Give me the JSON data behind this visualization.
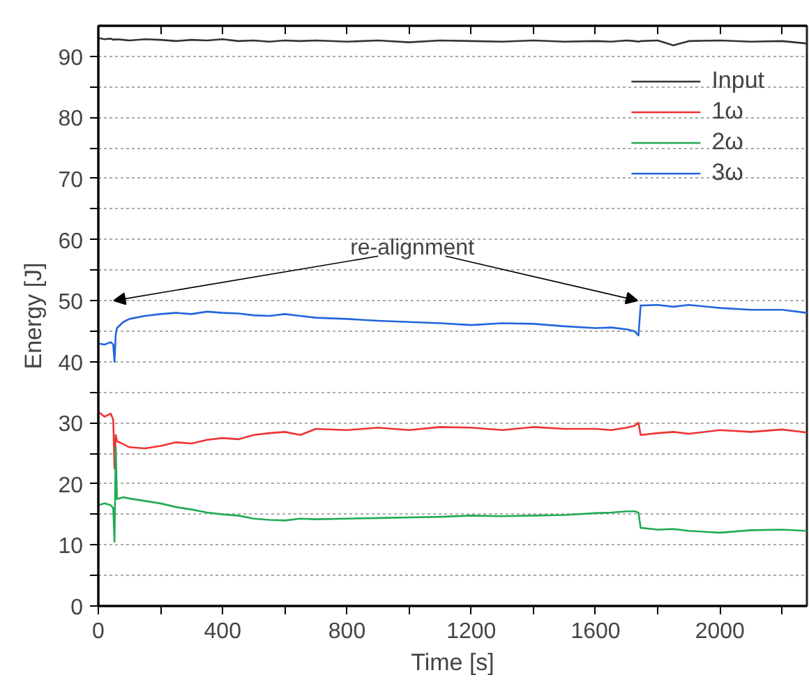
{
  "chart_data": {
    "type": "line",
    "xlabel": "Time [s]",
    "ylabel": "Energy [J]",
    "xlim": [
      0,
      2280
    ],
    "ylim": [
      0,
      95
    ],
    "xticks": [
      0,
      {
        "value": 200,
        "label": null
      },
      400,
      {
        "value": 600,
        "label": null
      },
      800,
      {
        "value": 1000,
        "label": null
      },
      1200,
      {
        "value": 1400,
        "label": null
      },
      1600,
      {
        "value": 1800,
        "label": null
      },
      2000,
      {
        "value": 2200,
        "label": null
      }
    ],
    "yticks": [
      0,
      {
        "value": 5,
        "label": null
      },
      10,
      {
        "value": 15,
        "label": null
      },
      20,
      {
        "value": 25,
        "label": null
      },
      30,
      {
        "value": 35,
        "label": null
      },
      40,
      {
        "value": 45,
        "label": null
      },
      50,
      {
        "value": 55,
        "label": null
      },
      60,
      {
        "value": 65,
        "label": null
      },
      70,
      {
        "value": 75,
        "label": null
      },
      80,
      {
        "value": 85,
        "label": null
      },
      90
    ],
    "grid": "y",
    "legend": "top right",
    "line_style": "solid",
    "marker": "none",
    "x": [
      0,
      20,
      40,
      48,
      52,
      56,
      60,
      80,
      100,
      150,
      200,
      250,
      300,
      350,
      400,
      450,
      500,
      550,
      600,
      650,
      700,
      800,
      900,
      1000,
      1100,
      1200,
      1300,
      1400,
      1500,
      1600,
      1650,
      1700,
      1725,
      1738,
      1745,
      1800,
      1850,
      1900,
      2000,
      2100,
      2200,
      2280
    ],
    "series": [
      {
        "name": "Input",
        "color": "#333333",
        "values": [
          93.0,
          92.8,
          92.9,
          92.7,
          92.8,
          92.7,
          92.8,
          92.7,
          92.6,
          92.8,
          92.7,
          92.5,
          92.7,
          92.6,
          92.8,
          92.5,
          92.6,
          92.4,
          92.6,
          92.5,
          92.6,
          92.4,
          92.6,
          92.3,
          92.6,
          92.5,
          92.4,
          92.6,
          92.4,
          92.5,
          92.4,
          92.6,
          92.5,
          92.4,
          92.5,
          92.6,
          91.8,
          92.5,
          92.6,
          92.4,
          92.5,
          92.1
        ]
      },
      {
        "name": "1ω",
        "color": "#ee3333",
        "values": [
          31.8,
          31.0,
          31.5,
          30.5,
          22.5,
          28.0,
          27.0,
          26.5,
          26.0,
          25.8,
          26.2,
          26.8,
          26.6,
          27.2,
          27.5,
          27.3,
          28.0,
          28.3,
          28.5,
          28.0,
          29.0,
          28.8,
          29.2,
          28.8,
          29.3,
          29.2,
          28.8,
          29.3,
          29.0,
          29.0,
          28.8,
          29.2,
          29.5,
          30.0,
          28.0,
          28.3,
          28.5,
          28.2,
          28.8,
          28.5,
          28.9,
          28.4
        ]
      },
      {
        "name": "2ω",
        "color": "#22aa55",
        "values": [
          16.5,
          16.8,
          16.5,
          16.0,
          10.5,
          26.0,
          17.5,
          17.8,
          17.6,
          17.2,
          16.8,
          16.2,
          15.8,
          15.3,
          15.0,
          14.8,
          14.3,
          14.1,
          14.0,
          14.3,
          14.2,
          14.3,
          14.4,
          14.5,
          14.6,
          14.8,
          14.7,
          14.8,
          14.9,
          15.2,
          15.3,
          15.5,
          15.5,
          15.3,
          12.8,
          12.5,
          12.6,
          12.3,
          12.0,
          12.4,
          12.5,
          12.3
        ]
      },
      {
        "name": "3ω",
        "color": "#2266dd",
        "values": [
          43.0,
          42.8,
          43.2,
          42.8,
          40.0,
          44.5,
          45.5,
          46.5,
          47.0,
          47.5,
          47.8,
          48.0,
          47.8,
          48.2,
          48.0,
          47.9,
          47.6,
          47.5,
          47.8,
          47.5,
          47.2,
          47.0,
          46.7,
          46.5,
          46.3,
          46.0,
          46.3,
          46.2,
          45.8,
          45.5,
          45.6,
          45.3,
          45.0,
          44.3,
          49.2,
          49.3,
          49.0,
          49.3,
          48.8,
          48.5,
          48.5,
          48.0
        ]
      }
    ],
    "annotations": [
      {
        "text": "re-alignment",
        "x": 1735,
        "y": 50
      }
    ]
  }
}
